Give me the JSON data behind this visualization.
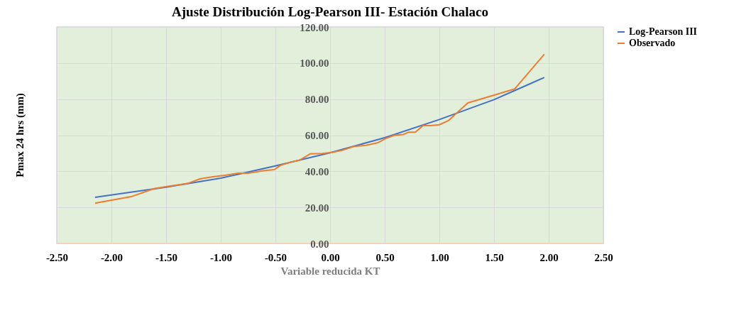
{
  "chart_data": {
    "type": "line",
    "title": "Ajuste Distribución Log-Pearson III- Estación Chalaco",
    "xlabel": "Variable reducida KT",
    "ylabel": "Pmax 24 hrs (mm)",
    "xlim": [
      -2.5,
      2.5
    ],
    "xticks": [
      {
        "value": -2.5,
        "label": "-2.50"
      },
      {
        "value": -2,
        "label": "-2.00"
      },
      {
        "value": -1.5,
        "label": "-1.50"
      },
      {
        "value": -1,
        "label": "-1.00"
      },
      {
        "value": -0.5,
        "label": "-0.50"
      },
      {
        "value": 0,
        "label": "0.00"
      },
      {
        "value": 0.5,
        "label": "0.50"
      },
      {
        "value": 1,
        "label": "1.00"
      },
      {
        "value": 1.5,
        "label": "1.50"
      },
      {
        "value": 2,
        "label": "2.00"
      },
      {
        "value": 2.5,
        "label": "2.50"
      }
    ],
    "ylim": [
      0,
      120
    ],
    "yticks": [
      {
        "value": 0,
        "label": "0.00"
      },
      {
        "value": 20,
        "label": "20.00"
      },
      {
        "value": 40,
        "label": "40.00"
      },
      {
        "value": 60,
        "label": "60.00"
      },
      {
        "value": 80,
        "label": "80.00"
      },
      {
        "value": 100,
        "label": "100.00"
      },
      {
        "value": 120,
        "label": "120.00"
      }
    ],
    "grid": true,
    "legend": "right",
    "line_style": "solid",
    "marker": "none",
    "series": [
      {
        "name": "Log-Pearson III",
        "color": "#4472c4",
        "x": [
          -2.15,
          -1.81,
          -1.5,
          -1.0,
          -0.5,
          0.0,
          0.5,
          1.0,
          1.5,
          1.69,
          1.96
        ],
        "values": [
          25.6,
          28.5,
          31.2,
          36.2,
          43.0,
          50.3,
          58.6,
          68.7,
          79.7,
          84.8,
          92.0
        ]
      },
      {
        "name": "Observado",
        "color": "#ed7d31",
        "x": [
          -2.15,
          -1.81,
          -1.61,
          -1.47,
          -1.3,
          -1.19,
          -1.07,
          -0.95,
          -0.84,
          -0.74,
          -0.61,
          -0.51,
          -0.45,
          -0.36,
          -0.28,
          -0.18,
          -0.07,
          0.03,
          0.11,
          0.22,
          0.33,
          0.44,
          0.51,
          0.59,
          0.67,
          0.72,
          0.78,
          0.85,
          0.92,
          1.0,
          1.08,
          1.15,
          1.26,
          1.49,
          1.69,
          1.96
        ],
        "values": [
          22.3,
          26.1,
          30.4,
          31.8,
          33.3,
          35.8,
          37.0,
          37.9,
          39.0,
          39.0,
          40.3,
          40.9,
          43.4,
          45.1,
          46.1,
          49.7,
          49.9,
          50.6,
          51.6,
          53.8,
          54.4,
          55.9,
          58.2,
          60.0,
          60.4,
          61.7,
          61.7,
          65.3,
          65.3,
          65.8,
          68.0,
          71.8,
          77.9,
          82.0,
          85.7,
          104.9
        ]
      }
    ]
  }
}
